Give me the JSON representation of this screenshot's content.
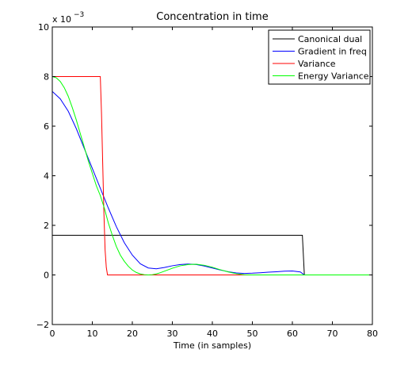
{
  "chart_data": {
    "type": "line",
    "title": "Concentration in time",
    "xlabel": "Time (in samples)",
    "ylabel": "",
    "y_exponent_base": "x 10",
    "y_exponent_power": "−3",
    "xlim": [
      0,
      80
    ],
    "ylim": [
      -2,
      10
    ],
    "xticks": [
      0,
      10,
      20,
      30,
      40,
      50,
      60,
      70,
      80
    ],
    "yticks": [
      -2,
      0,
      2,
      4,
      6,
      8,
      10
    ],
    "grid": false,
    "legend_position": "top-right",
    "series": [
      {
        "name": "Canonical dual",
        "color": "#000000",
        "x": [
          0,
          62.5,
          63,
          80
        ],
        "y": [
          1.6,
          1.6,
          0,
          0
        ]
      },
      {
        "name": "Gradient in freq",
        "color": "#0000ff",
        "x": [
          0,
          2,
          4,
          6,
          8,
          10,
          12,
          14,
          16,
          18,
          20,
          22,
          24,
          26,
          28,
          30,
          32,
          34,
          36,
          38,
          40,
          42,
          44,
          46,
          48,
          50,
          52,
          54,
          56,
          58,
          60,
          62,
          63,
          80
        ],
        "y": [
          7.4,
          7.1,
          6.6,
          5.9,
          5.1,
          4.3,
          3.5,
          2.7,
          1.95,
          1.3,
          0.8,
          0.45,
          0.28,
          0.25,
          0.3,
          0.37,
          0.42,
          0.44,
          0.42,
          0.36,
          0.28,
          0.2,
          0.13,
          0.08,
          0.06,
          0.07,
          0.09,
          0.11,
          0.13,
          0.15,
          0.16,
          0.12,
          0,
          0
        ]
      },
      {
        "name": "Variance",
        "color": "#ff0000",
        "x": [
          0,
          12,
          12.3,
          12.6,
          12.9,
          13.2,
          13.5,
          13.8,
          80
        ],
        "y": [
          8,
          8,
          6.5,
          4.5,
          2.5,
          1.0,
          0.3,
          0,
          0
        ]
      },
      {
        "name": "Energy Variance",
        "color": "#00ff00",
        "x": [
          0,
          1,
          2,
          3,
          4,
          5,
          6,
          7,
          8,
          9,
          10,
          11,
          12,
          13,
          14,
          15,
          16,
          17,
          18,
          19,
          20,
          21,
          22,
          23,
          24,
          25,
          26,
          27,
          28,
          30,
          32,
          34,
          36,
          38,
          40,
          42,
          44,
          46,
          48,
          50,
          80
        ],
        "y": [
          8.0,
          7.95,
          7.8,
          7.55,
          7.2,
          6.75,
          6.25,
          5.7,
          5.15,
          4.6,
          4.1,
          3.6,
          3.2,
          2.7,
          2.1,
          1.6,
          1.15,
          0.8,
          0.55,
          0.35,
          0.2,
          0.1,
          0.04,
          0.01,
          0,
          0.01,
          0.04,
          0.09,
          0.15,
          0.27,
          0.37,
          0.42,
          0.43,
          0.39,
          0.31,
          0.21,
          0.12,
          0.05,
          0.01,
          0,
          0
        ]
      }
    ]
  }
}
